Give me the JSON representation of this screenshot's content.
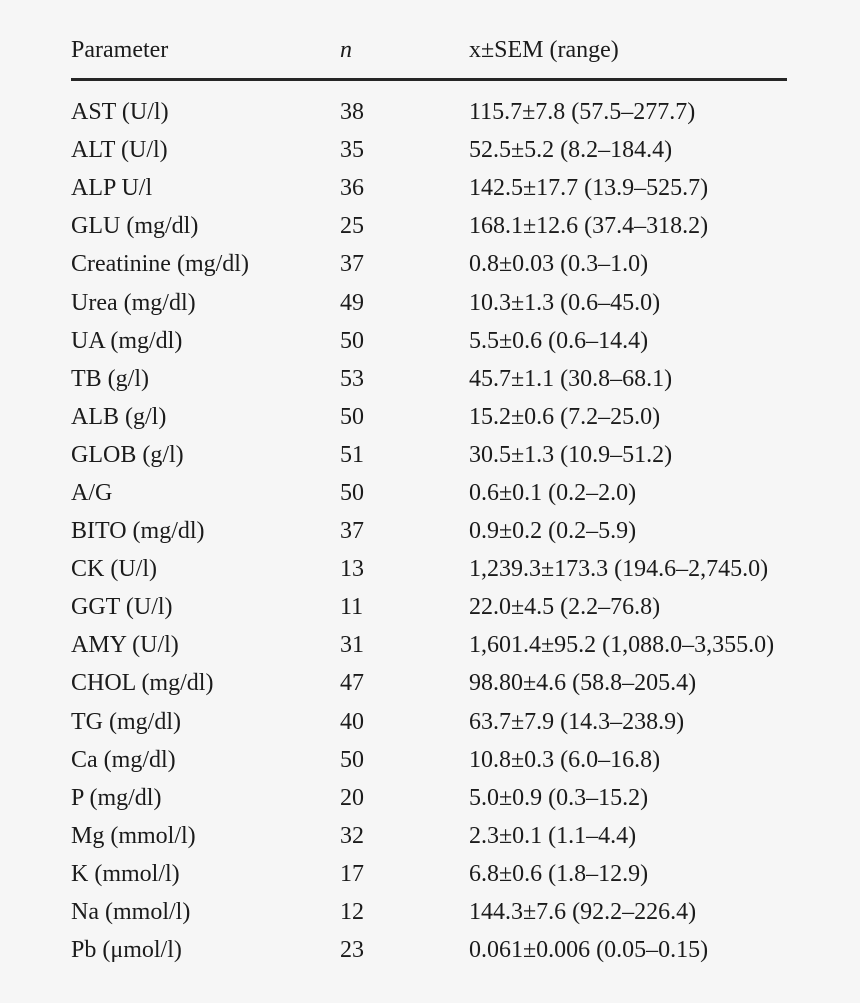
{
  "table": {
    "columns": [
      {
        "key": "parameter",
        "label": "Parameter"
      },
      {
        "key": "n",
        "label": "n"
      },
      {
        "key": "value",
        "label": "x±SEM (range)"
      }
    ],
    "rows": [
      {
        "parameter": "AST (U/l)",
        "n": "38",
        "value": "115.7±7.8 (57.5–277.7)"
      },
      {
        "parameter": "ALT (U/l)",
        "n": "35",
        "value": "52.5±5.2 (8.2–184.4)"
      },
      {
        "parameter": "ALP U/l",
        "n": "36",
        "value": "142.5±17.7 (13.9–525.7)"
      },
      {
        "parameter": "GLU (mg/dl)",
        "n": "25",
        "value": "168.1±12.6 (37.4–318.2)"
      },
      {
        "parameter": "Creatinine (mg/dl)",
        "n": "37",
        "value": "0.8±0.03 (0.3–1.0)"
      },
      {
        "parameter": "Urea (mg/dl)",
        "n": "49",
        "value": "10.3±1.3 (0.6–45.0)"
      },
      {
        "parameter": "UA (mg/dl)",
        "n": "50",
        "value": "5.5±0.6 (0.6–14.4)"
      },
      {
        "parameter": "TB (g/l)",
        "n": "53",
        "value": "45.7±1.1 (30.8–68.1)"
      },
      {
        "parameter": "ALB (g/l)",
        "n": "50",
        "value": "15.2±0.6 (7.2–25.0)"
      },
      {
        "parameter": "GLOB (g/l)",
        "n": "51",
        "value": "30.5±1.3 (10.9–51.2)"
      },
      {
        "parameter": "A/G",
        "n": "50",
        "value": "0.6±0.1 (0.2–2.0)"
      },
      {
        "parameter": "BITO (mg/dl)",
        "n": "37",
        "value": "0.9±0.2 (0.2–5.9)"
      },
      {
        "parameter": "CK (U/l)",
        "n": "13",
        "value": "1,239.3±173.3 (194.6–2,745.0)"
      },
      {
        "parameter": "GGT (U/l)",
        "n": "11",
        "value": "22.0±4.5 (2.2–76.8)"
      },
      {
        "parameter": "AMY (U/l)",
        "n": "31",
        "value": "1,601.4±95.2 (1,088.0–3,355.0)"
      },
      {
        "parameter": "CHOL (mg/dl)",
        "n": "47",
        "value": "98.80±4.6 (58.8–205.4)"
      },
      {
        "parameter": "TG (mg/dl)",
        "n": "40",
        "value": "63.7±7.9 (14.3–238.9)"
      },
      {
        "parameter": "Ca (mg/dl)",
        "n": "50",
        "value": "10.8±0.3 (6.0–16.8)"
      },
      {
        "parameter": "P (mg/dl)",
        "n": "20",
        "value": "5.0±0.9 (0.3–15.2)"
      },
      {
        "parameter": "Mg (mmol/l)",
        "n": "32",
        "value": "2.3±0.1 (1.1–4.4)"
      },
      {
        "parameter": "K (mmol/l)",
        "n": "17",
        "value": "6.8±0.6 (1.8–12.9)"
      },
      {
        "parameter": "Na (mmol/l)",
        "n": "12",
        "value": "144.3±7.6 (92.2–226.4)"
      },
      {
        "parameter": "Pb (μmol/l)",
        "n": "23",
        "value": "0.061±0.006 (0.05–0.15)"
      }
    ]
  }
}
